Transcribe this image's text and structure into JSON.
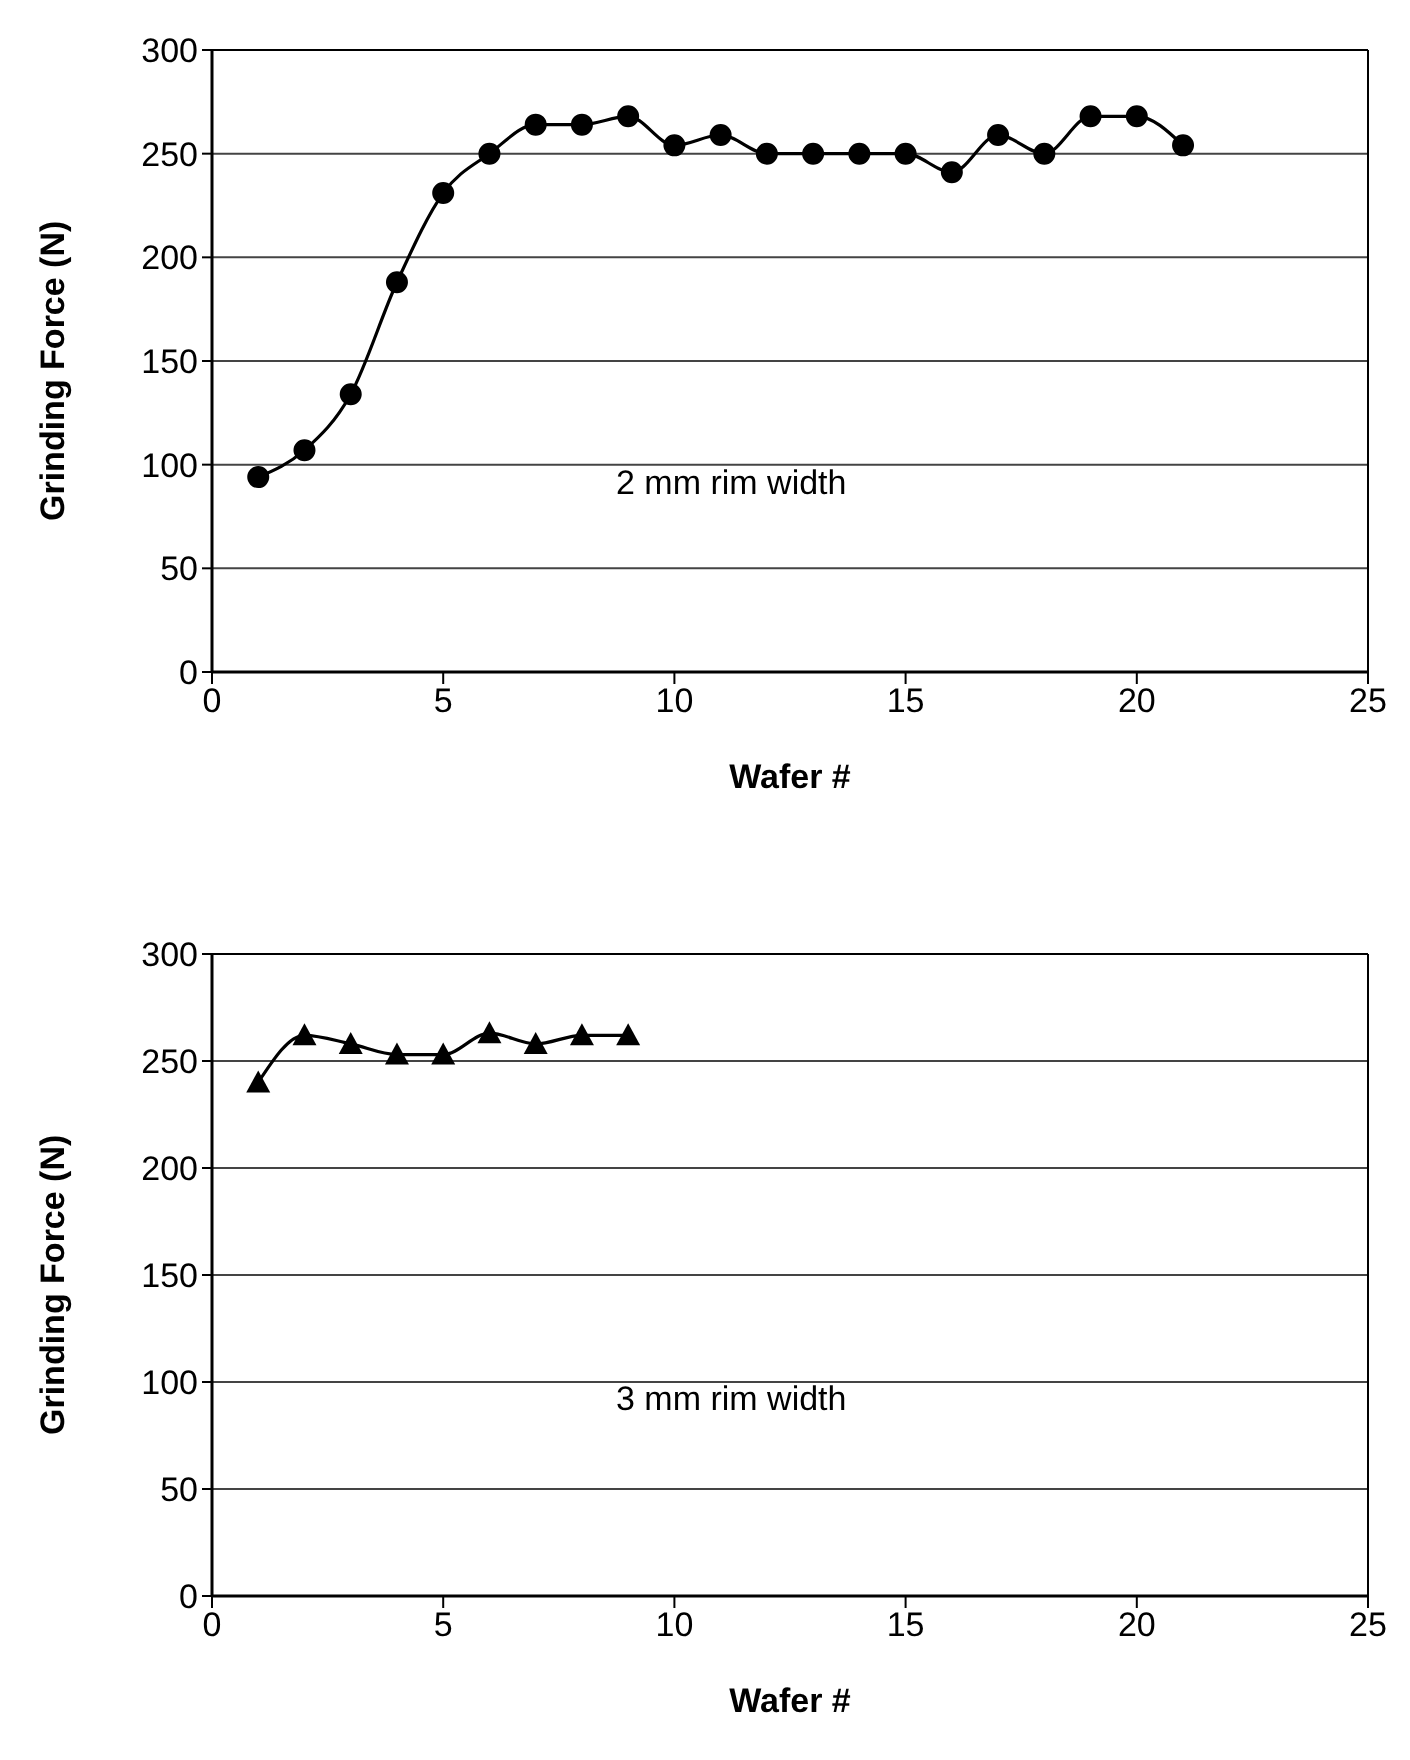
{
  "chart_data": [
    {
      "type": "line",
      "xlabel": "Wafer #",
      "ylabel": "Grinding Force (N)",
      "annotations": [
        "2 mm rim width"
      ],
      "x": [
        1,
        2,
        3,
        4,
        5,
        6,
        7,
        8,
        9,
        10,
        11,
        12,
        13,
        14,
        15,
        16,
        17,
        18,
        19,
        20,
        21
      ],
      "series": [
        {
          "color": "#000000",
          "values": [
            94,
            107,
            134,
            188,
            231,
            250,
            264,
            264,
            268,
            254,
            259,
            250,
            250,
            250,
            250,
            241,
            259,
            250,
            268,
            268,
            254
          ]
        }
      ],
      "marker": "circle",
      "xlim": [
        0,
        25
      ],
      "xticks": [
        0,
        5,
        10,
        15,
        20,
        25
      ],
      "ylim": [
        0,
        300
      ],
      "yticks": [
        0,
        50,
        100,
        150,
        200,
        250,
        300
      ],
      "grid": "y"
    },
    {
      "type": "line",
      "xlabel": "Wafer #",
      "ylabel": "Grinding Force (N)",
      "annotations": [
        "3 mm rim width"
      ],
      "x": [
        1,
        2,
        3,
        4,
        5,
        6,
        7,
        8,
        9
      ],
      "series": [
        {
          "color": "#000000",
          "values": [
            240,
            262,
            258,
            253,
            253,
            263,
            258,
            262,
            262
          ]
        }
      ],
      "marker": "triangle",
      "xlim": [
        0,
        25
      ],
      "xticks": [
        0,
        5,
        10,
        15,
        20,
        25
      ],
      "ylim": [
        0,
        300
      ],
      "yticks": [
        0,
        50,
        100,
        150,
        200,
        250,
        300
      ],
      "grid": "y"
    }
  ]
}
